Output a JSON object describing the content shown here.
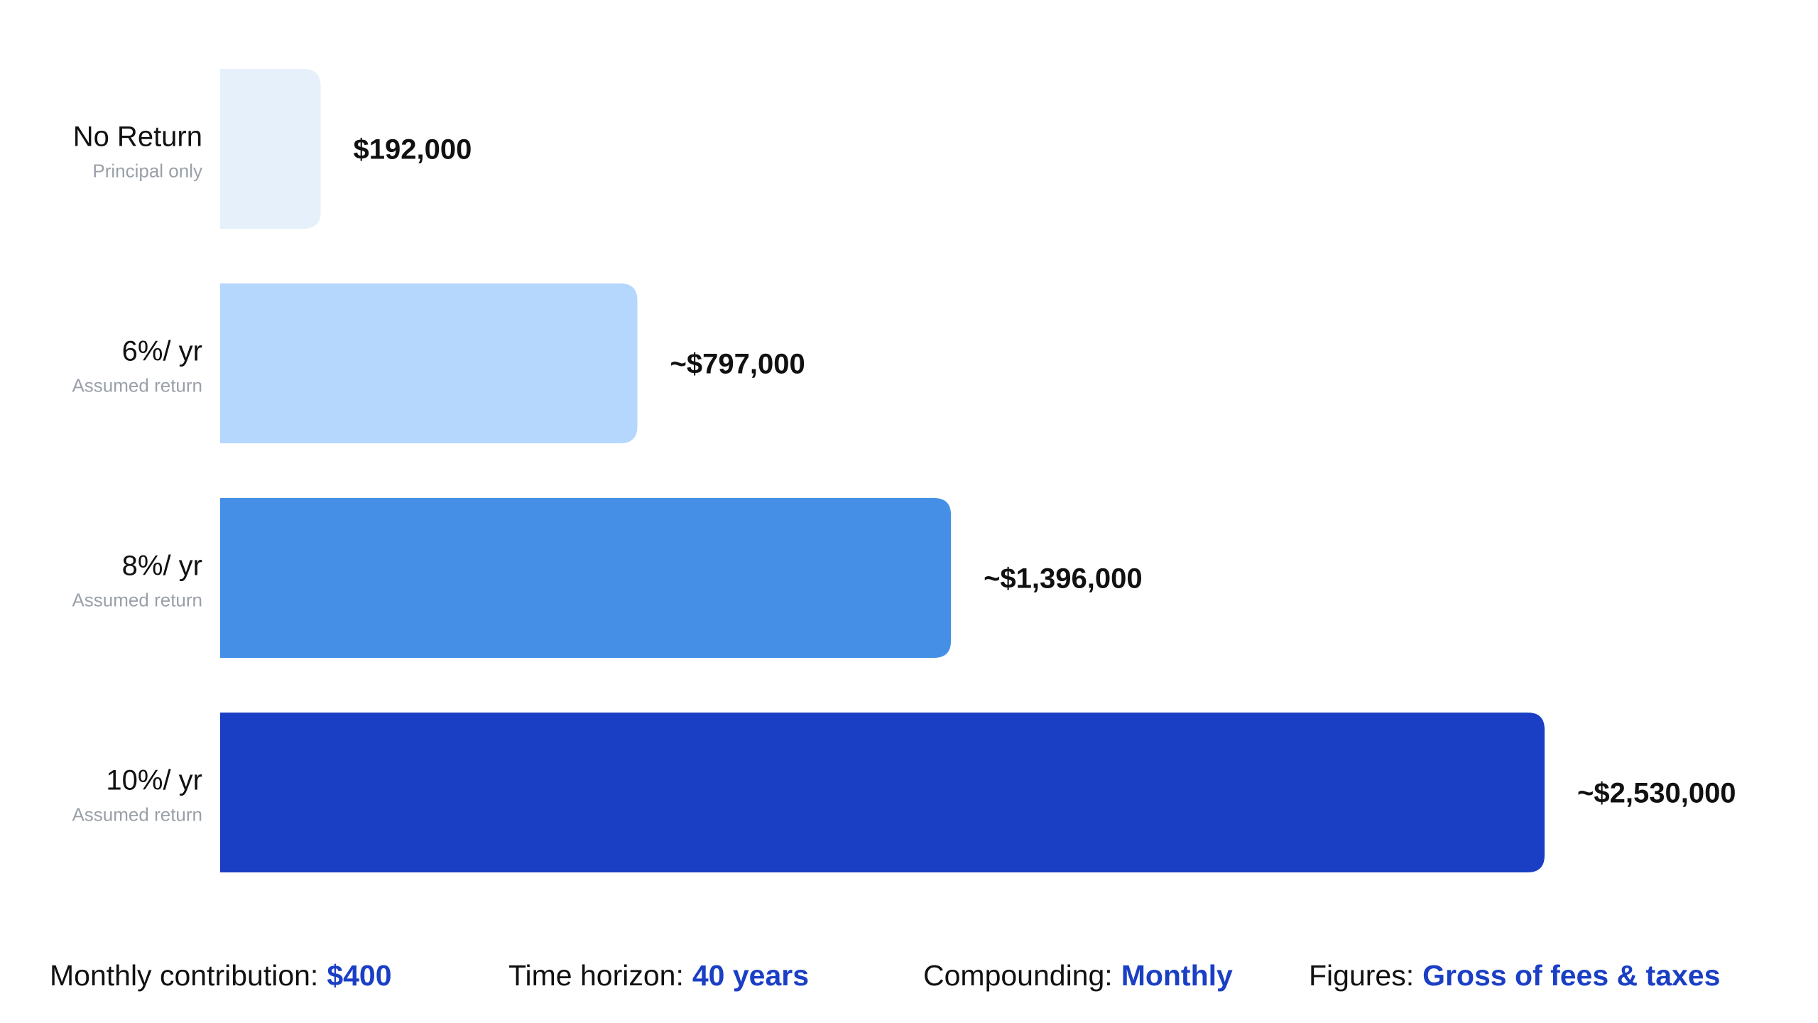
{
  "chart_data": {
    "type": "bar",
    "orientation": "horizontal",
    "categories": [
      "No Return",
      "6%/ yr",
      "8%/ yr",
      "10%/ yr"
    ],
    "sublabels": [
      "Principal only",
      "Assumed return",
      "Assumed return",
      "Assumed return"
    ],
    "values": [
      192000,
      797000,
      1396000,
      2530000
    ],
    "value_labels": [
      "$192,000",
      "~$797,000",
      "~$1,396,000",
      "~$2,530,000"
    ],
    "bar_colors": [
      "#e6f0fb",
      "#b5d6fd",
      "#4590e6",
      "#1b3fc4"
    ],
    "title": "",
    "xlabel": "",
    "ylabel": "",
    "xlim": [
      0,
      2530000
    ],
    "grid": false,
    "legend": "none"
  },
  "footer": {
    "items": [
      {
        "label": "Monthly contribution:",
        "value": "$400"
      },
      {
        "label": "Time horizon:",
        "value": "40 years"
      },
      {
        "label": "Compounding:",
        "value": "Monthly"
      },
      {
        "label": "Figures:",
        "value": "Gross of fees & taxes"
      }
    ]
  },
  "colors": {
    "accent": "#1b3fc4",
    "text": "#111111",
    "muted": "#9aa0a8"
  }
}
